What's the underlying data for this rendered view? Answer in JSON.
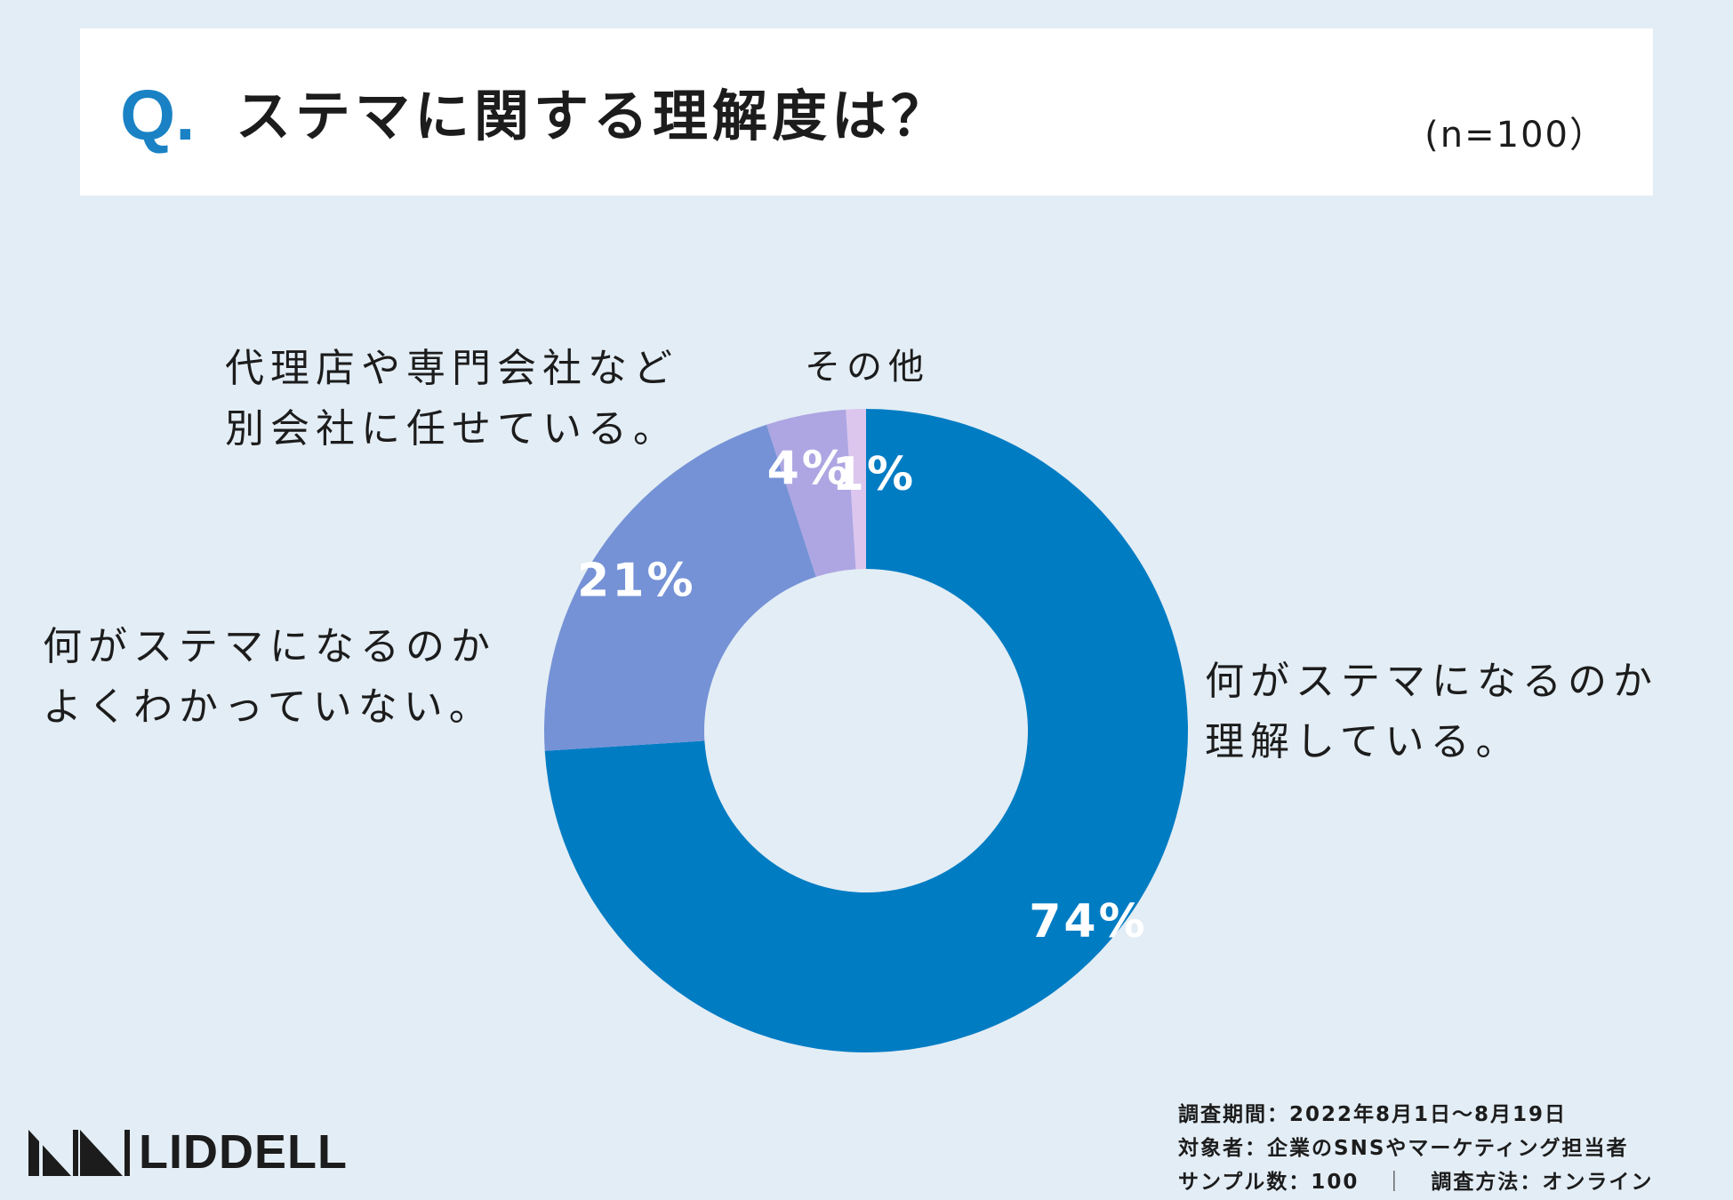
{
  "header": {
    "q_mark": "Q.",
    "title": "ステマに関する理解度は？",
    "sample_size": "(n=100）"
  },
  "chart_data": {
    "type": "pie",
    "style": "donut",
    "title": "ステマに関する理解度は？",
    "start_angle_deg": 0,
    "direction": "clockwise",
    "slices": [
      {
        "label": "何がステマになるのか理解している。",
        "value": 74,
        "value_label": "74%",
        "color": "#007cc3"
      },
      {
        "label": "何がステマになるのかよくわかっていない。",
        "value": 21,
        "value_label": "21%",
        "color": "#7592d6"
      },
      {
        "label": "代理店や専門会社など別会社に任せている。",
        "value": 4,
        "value_label": "4%",
        "color": "#ada6e2"
      },
      {
        "label": "その他",
        "value": 1,
        "value_label": "1%",
        "color": "#dcc6ee"
      }
    ]
  },
  "category_labels": {
    "understand": "何がステマになるのか\n理解している。",
    "dontknow": "何がステマになるのか\nよくわかっていない。",
    "agency": "代理店や専門会社など\n別会社に任せている。",
    "other": "その他"
  },
  "footer": {
    "logo_text": "LIDDELL",
    "survey_period": "調査期間：2022年8月1日～8月19日",
    "target": "対象者：企業のSNSやマーケティング担当者",
    "sample": "サンプル数：100",
    "separator": "｜",
    "method": "調査方法：オンライン"
  },
  "colors": {
    "background": "#e3edf5",
    "accent": "#1a82c4",
    "text": "#1c1c1c"
  }
}
